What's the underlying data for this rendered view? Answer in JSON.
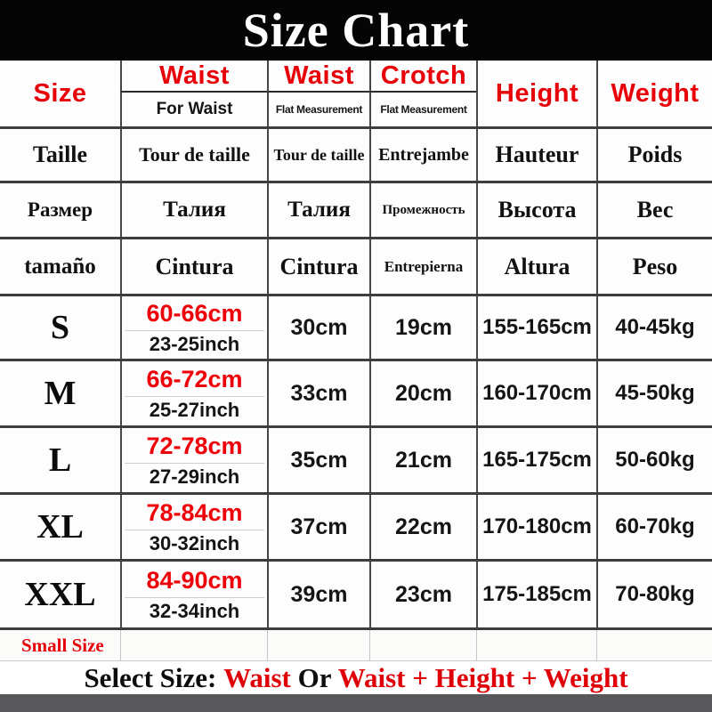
{
  "title": "Size Chart",
  "colors": {
    "accent_red": "#e80008",
    "banner_bg": "#050505",
    "border_dark": "#3d3d3d",
    "bottom_bar": "#58585a"
  },
  "header": {
    "size": "Size",
    "waist": "Waist",
    "waist_sub": "For Waist",
    "waist_flat": "Waist",
    "waist_flat_sub": "Flat Measurement",
    "crotch": "Crotch",
    "crotch_sub": "Flat Measurement",
    "height": "Height",
    "weight": "Weight"
  },
  "translations": [
    {
      "size": "Taille",
      "waist": "Tour de taille",
      "waist_flat": "Tour de taille",
      "crotch": "Entrejambe",
      "height": "Hauteur",
      "weight": "Poids"
    },
    {
      "size": "Размер",
      "waist": "Талия",
      "waist_flat": "Талия",
      "crotch": "Промежность",
      "height": "Высота",
      "weight": "Вес"
    },
    {
      "size": "tamaño",
      "waist": "Cintura",
      "waist_flat": "Cintura",
      "crotch": "Entrepierna",
      "height": "Altura",
      "weight": "Peso"
    }
  ],
  "rows": [
    {
      "size": "S",
      "waist_cm": "60-66cm",
      "waist_inch": "23-25inch",
      "waist_flat": "30cm",
      "crotch": "19cm",
      "height": "155-165cm",
      "weight": "40-45kg"
    },
    {
      "size": "M",
      "waist_cm": "66-72cm",
      "waist_inch": "25-27inch",
      "waist_flat": "33cm",
      "crotch": "20cm",
      "height": "160-170cm",
      "weight": "45-50kg"
    },
    {
      "size": "L",
      "waist_cm": "72-78cm",
      "waist_inch": "27-29inch",
      "waist_flat": "35cm",
      "crotch": "21cm",
      "height": "165-175cm",
      "weight": "50-60kg"
    },
    {
      "size": "XL",
      "waist_cm": "78-84cm",
      "waist_inch": "30-32inch",
      "waist_flat": "37cm",
      "crotch": "22cm",
      "height": "170-180cm",
      "weight": "60-70kg"
    },
    {
      "size": "XXL",
      "waist_cm": "84-90cm",
      "waist_inch": "32-34inch",
      "waist_flat": "39cm",
      "crotch": "23cm",
      "height": "175-185cm",
      "weight": "70-80kg"
    }
  ],
  "footer": {
    "small_size": "Small Size",
    "select_parts": [
      {
        "text": "Select Size: ",
        "color": "black"
      },
      {
        "text": "Waist",
        "color": "red"
      },
      {
        "text": " Or ",
        "color": "black"
      },
      {
        "text": "Waist + Height + Weight",
        "color": "red"
      }
    ]
  }
}
